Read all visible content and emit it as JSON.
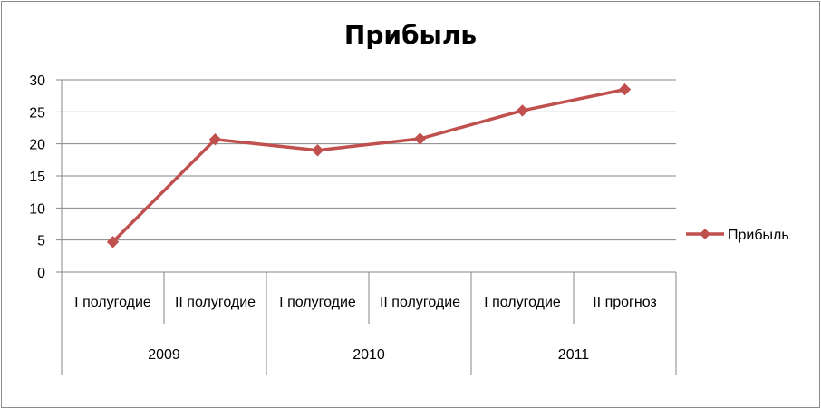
{
  "chart_data": {
    "type": "line",
    "title": "Прибыль",
    "categories": [
      "I полугодие",
      "II полугодие",
      "I полугодие",
      "II полугодие",
      "I полугодие",
      "II  прогноз"
    ],
    "groups": [
      {
        "label": "2009",
        "span": 2
      },
      {
        "label": "2010",
        "span": 2
      },
      {
        "label": "2011",
        "span": 2
      }
    ],
    "series": [
      {
        "name": "Прибыль",
        "color": "#c0504d",
        "values": [
          4.7,
          20.7,
          19.0,
          20.8,
          25.2,
          28.5
        ]
      }
    ],
    "ylim": [
      0,
      30
    ],
    "yticks": [
      0,
      5,
      10,
      15,
      20,
      25,
      30
    ],
    "grid": true,
    "legend": "right"
  }
}
